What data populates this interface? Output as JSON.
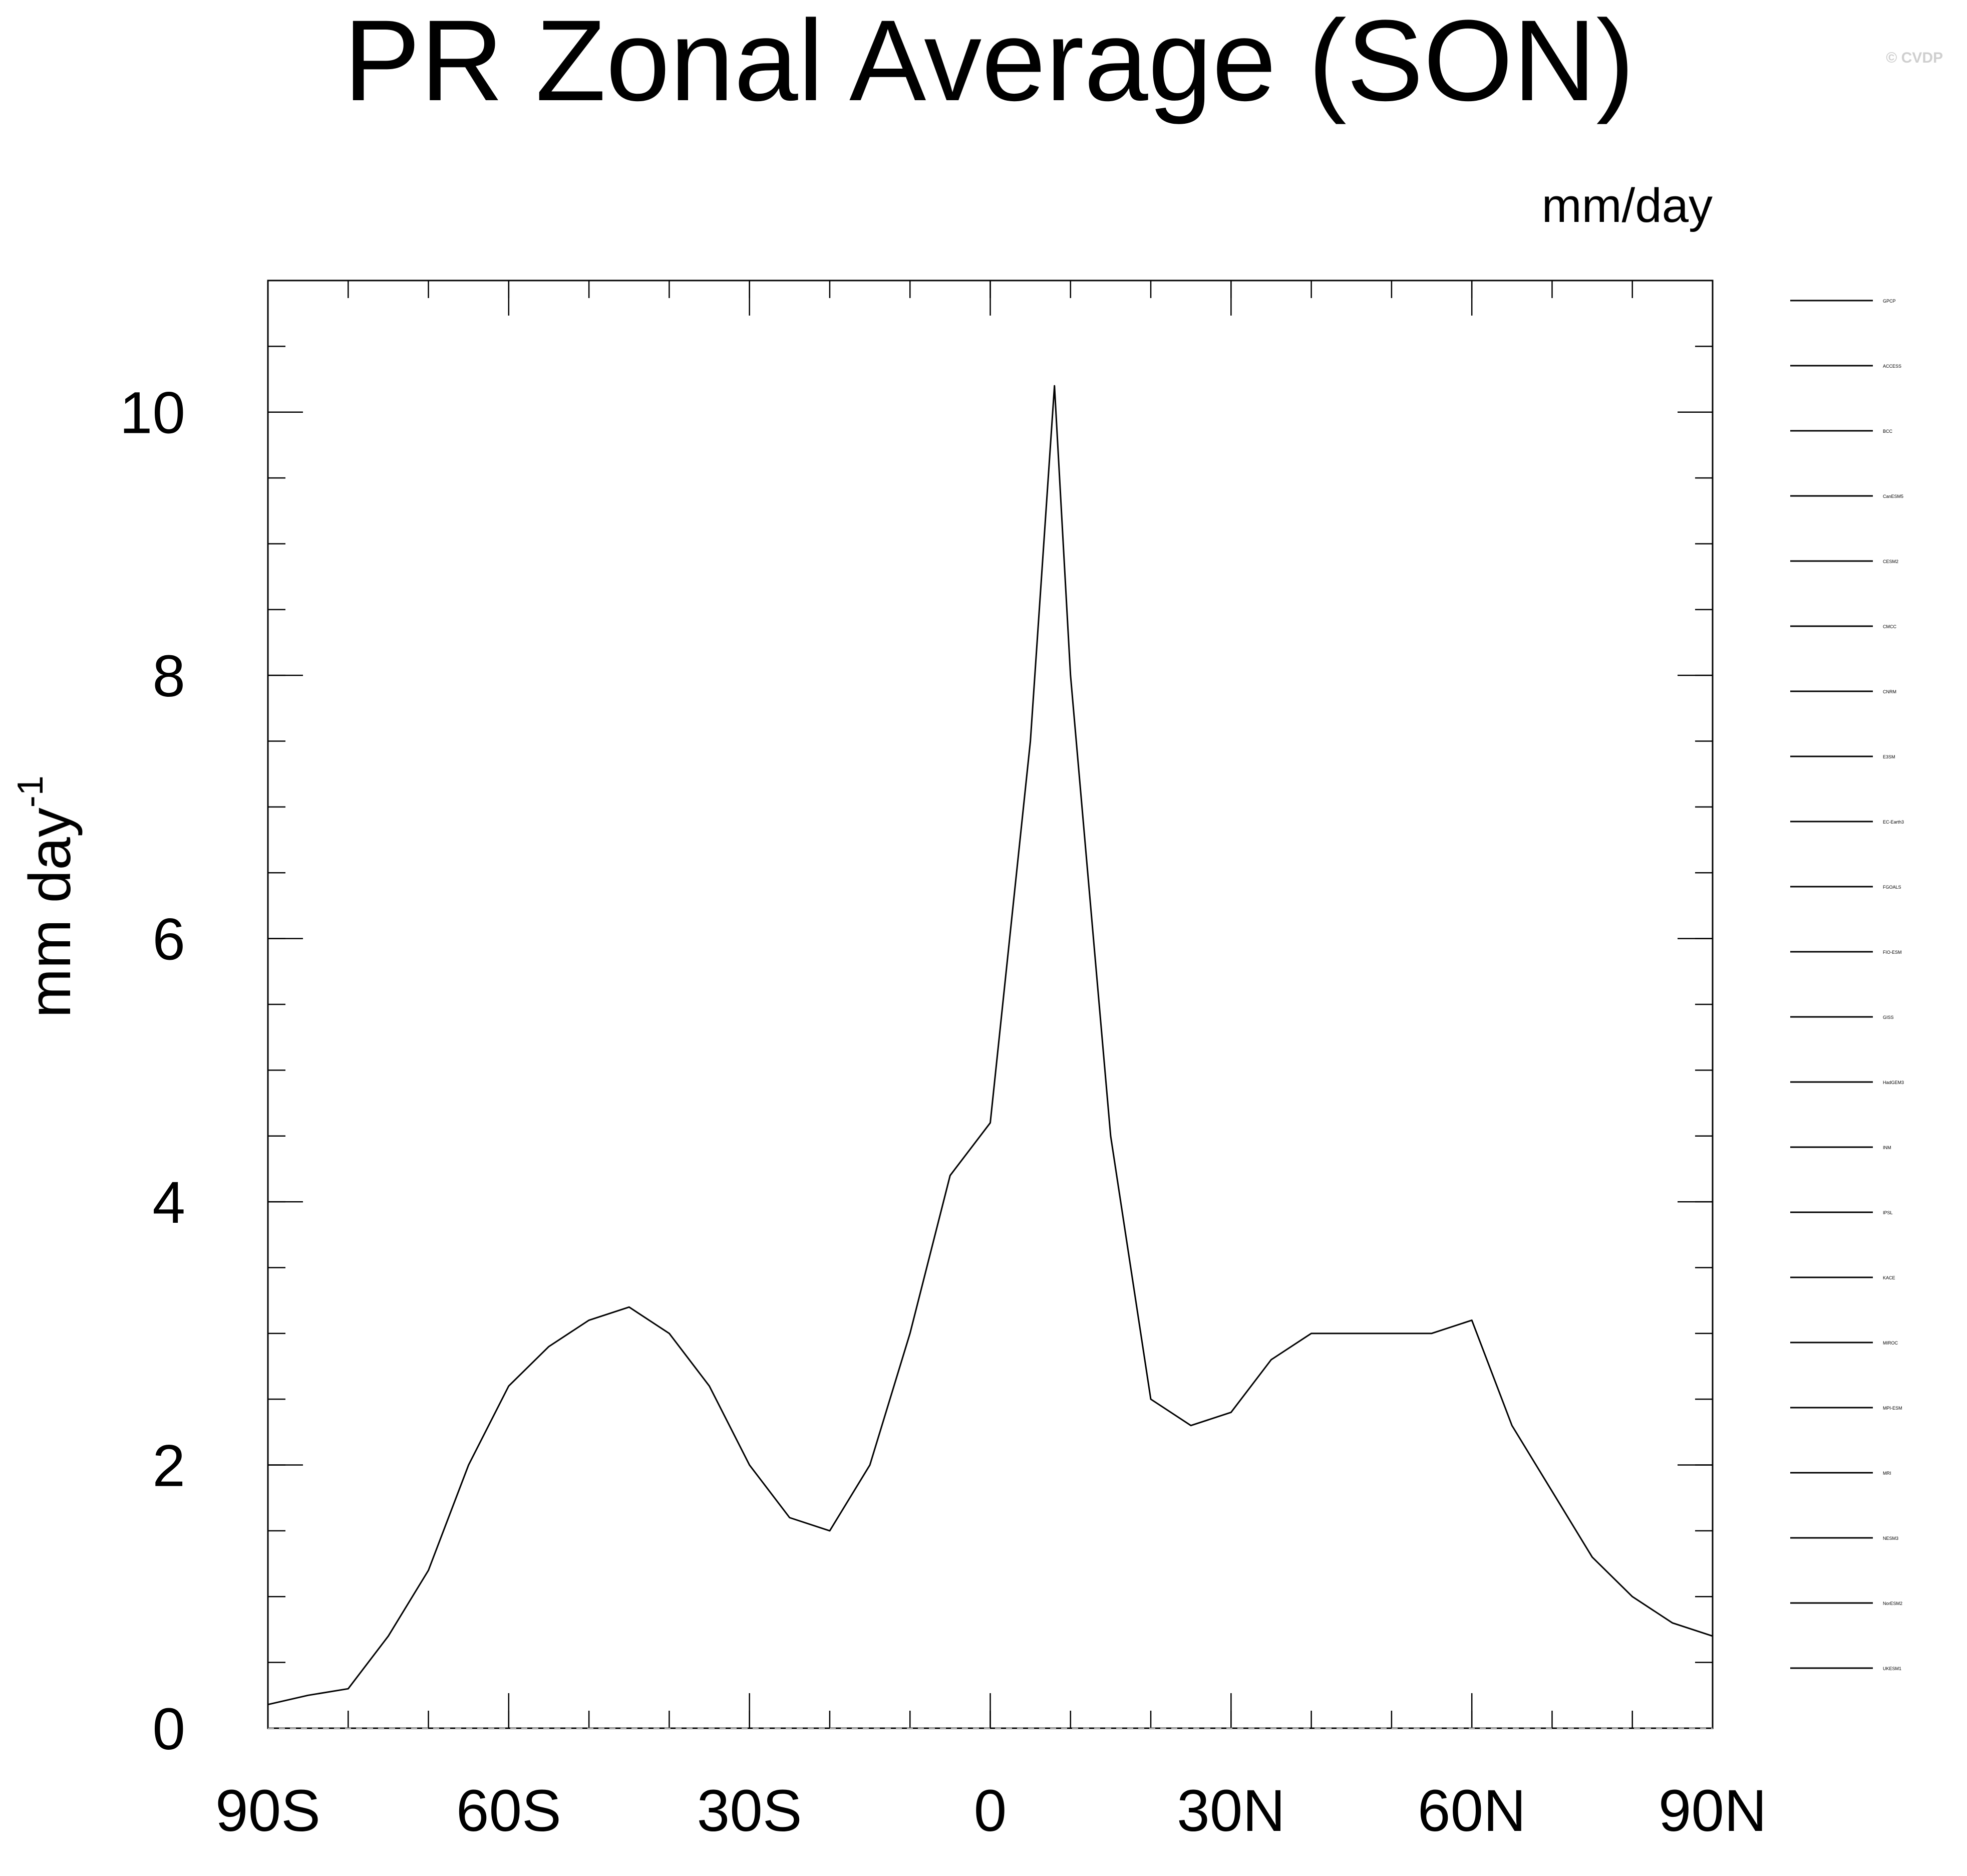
{
  "chart_data": {
    "type": "line",
    "title": "PR Zonal Average (SON)",
    "units": "mm/day",
    "ylabel": "mm day",
    "ylabel_superscript": "-1",
    "watermark": "© CVDP",
    "xlim": [
      -90,
      90
    ],
    "ylim": [
      0,
      11
    ],
    "xticks": [
      {
        "value": -90,
        "label": "90S"
      },
      {
        "value": -60,
        "label": "60S"
      },
      {
        "value": -30,
        "label": "30S"
      },
      {
        "value": 0,
        "label": "0"
      },
      {
        "value": 30,
        "label": "30N"
      },
      {
        "value": 60,
        "label": "60N"
      },
      {
        "value": 90,
        "label": "90N"
      }
    ],
    "yticks": [
      {
        "value": 0,
        "label": "0"
      },
      {
        "value": 2,
        "label": "2"
      },
      {
        "value": 4,
        "label": "4"
      },
      {
        "value": 6,
        "label": "6"
      },
      {
        "value": 8,
        "label": "8"
      },
      {
        "value": 10,
        "label": "10"
      }
    ],
    "x": [
      -90,
      -85,
      -80,
      -75,
      -70,
      -65,
      -60,
      -55,
      -50,
      -45,
      -40,
      -35,
      -30,
      -25,
      -20,
      -15,
      -10,
      -5,
      0,
      5,
      8,
      10,
      15,
      20,
      25,
      30,
      35,
      40,
      45,
      50,
      55,
      60,
      65,
      70,
      75,
      80,
      85,
      90
    ],
    "series": [
      {
        "values": [
          0.18,
          0.25,
          0.3,
          0.7,
          1.2,
          2.0,
          2.6,
          2.9,
          3.1,
          3.2,
          3.0,
          2.6,
          2.0,
          1.6,
          1.5,
          2.0,
          3.0,
          4.2,
          4.6,
          7.5,
          10.2,
          8.0,
          4.5,
          2.5,
          2.3,
          2.4,
          2.8,
          3.0,
          3.0,
          3.0,
          3.0,
          3.1,
          2.3,
          1.8,
          1.3,
          1.0,
          0.8,
          0.7
        ],
        "color": "#000000",
        "dash": "solid",
        "width": 3
      }
    ],
    "legend": {
      "placement": "right",
      "groups": [
        "GPCP",
        "ACCESS",
        "BCC",
        "CanESM5",
        "CESM2",
        "CMCC",
        "CNRM",
        "E3SM",
        "EC-Earth3",
        "FGOALS",
        "FIO-ESM",
        "GISS",
        "HadGEM3",
        "INM",
        "IPSL",
        "KACE",
        "MIROC",
        "MPI-ESM",
        "MRI",
        "NESM3",
        "NorESM2",
        "UKESM1"
      ]
    }
  }
}
